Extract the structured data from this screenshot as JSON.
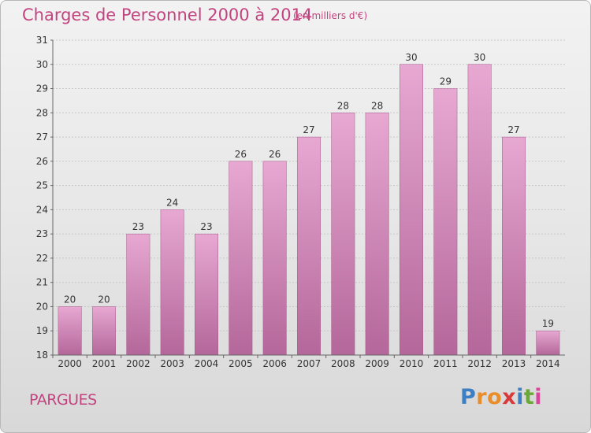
{
  "title": "Charges de Personnel 2000 à 2014",
  "subtitle": "(en milliers d'€)",
  "commune": "PARGUES",
  "logo": {
    "letters": [
      "P",
      "r",
      "o",
      "x",
      "i",
      "t",
      "i"
    ],
    "colors": [
      "#3c7fc4",
      "#e98c2a",
      "#e98c2a",
      "#d83a3a",
      "#3c7fc4",
      "#6aa83a",
      "#d8459a"
    ]
  },
  "colors": {
    "bar_top": "#e7a8d2",
    "bar_bottom": "#b4679a",
    "accent": "#c2447f"
  },
  "chart_data": {
    "type": "bar",
    "categories": [
      "2000",
      "2001",
      "2002",
      "2003",
      "2004",
      "2005",
      "2006",
      "2007",
      "2008",
      "2009",
      "2010",
      "2011",
      "2012",
      "2013",
      "2014"
    ],
    "values": [
      20,
      20,
      23,
      24,
      23,
      26,
      26,
      27,
      28,
      28,
      30,
      29,
      30,
      27,
      19
    ],
    "title": "Charges de Personnel 2000 à 2014",
    "xlabel": "",
    "ylabel": "",
    "ylim": [
      18,
      31
    ],
    "yticks": [
      18,
      19,
      20,
      21,
      22,
      23,
      24,
      25,
      26,
      27,
      28,
      29,
      30,
      31
    ],
    "grid": true,
    "data_labels": true
  }
}
